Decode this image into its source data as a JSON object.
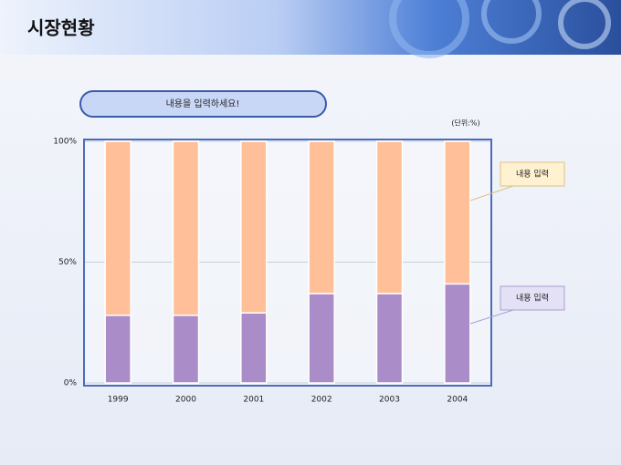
{
  "header": {
    "title": "시장현황"
  },
  "banner": "내용을 입력하세요!",
  "unit": "(단위:%)",
  "chart_data": {
    "type": "stacked_bar",
    "categories": [
      "1999",
      "2000",
      "2001",
      "2002",
      "2003",
      "2004"
    ],
    "series": [
      {
        "name": "내용 입력",
        "color": "#a98cc8",
        "values": [
          28,
          28,
          29,
          37,
          37,
          41
        ]
      },
      {
        "name": "내용 입력",
        "color": "#ffbf99",
        "values": [
          72,
          72,
          71,
          63,
          63,
          59
        ]
      }
    ],
    "ylim": [
      0,
      100
    ],
    "yticks": [
      {
        "value": 0,
        "label": "0%"
      },
      {
        "value": 50,
        "label": "50%"
      },
      {
        "value": 100,
        "label": "100%"
      }
    ],
    "grid": true
  }
}
